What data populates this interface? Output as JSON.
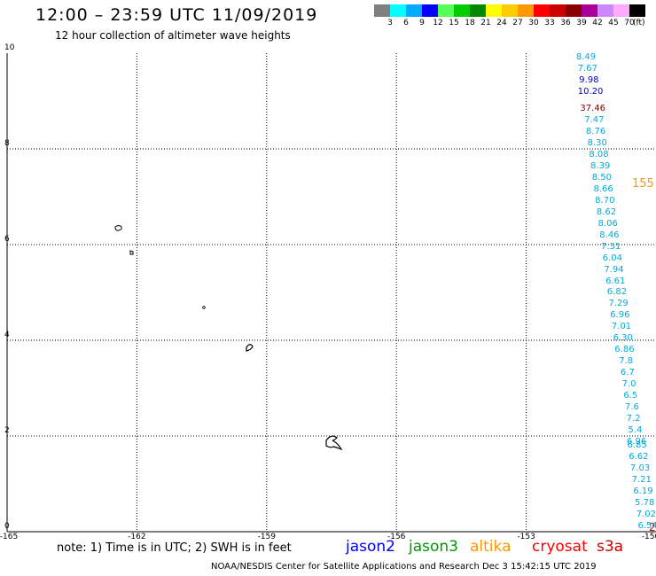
{
  "header": {
    "title": "12:00 – 23:59 UTC 11/09/2019",
    "subtitle": "12 hour collection of altimeter wave heights"
  },
  "scale": {
    "colors": [
      "#808080",
      "#00ffff",
      "#00aaff",
      "#0000ff",
      "#55ff55",
      "#00cc00",
      "#008800",
      "#ffff00",
      "#ffcc00",
      "#ff9900",
      "#ff0000",
      "#cc0000",
      "#880000",
      "#aa0099",
      "#cc88ff",
      "#ffaaff",
      "#000000"
    ],
    "labels": [
      "3",
      "6",
      "9",
      "12",
      "15",
      "18",
      "21",
      "24",
      "27",
      "30",
      "33",
      "36",
      "39",
      "42",
      "45",
      "70"
    ],
    "unit": "(ft)"
  },
  "map": {
    "lon_min": -165,
    "lon_max": -150,
    "lat_min": 0,
    "lat_max": 10,
    "x_labels": [
      "-165",
      "-162",
      "-159",
      "-156",
      "-153",
      "-150"
    ],
    "y_labels": [
      "0",
      "2",
      "4",
      "6",
      "8",
      "10"
    ],
    "grid": "dotted"
  },
  "observations": [
    {
      "v": "8.49",
      "color": "#00aadd",
      "lat": 9.8
    },
    {
      "v": "7.67",
      "color": "#00aadd",
      "lat": 9.56
    },
    {
      "v": "9.98",
      "color": "#0000cc",
      "lat": 9.32
    },
    {
      "v": "10.20",
      "color": "#0000cc",
      "lat": 9.08
    },
    {
      "v": "37.46",
      "color": "#880000",
      "lat": 8.72
    },
    {
      "v": "7.47",
      "color": "#00aadd",
      "lat": 8.48
    },
    {
      "v": "8.76",
      "color": "#00aadd",
      "lat": 8.24
    },
    {
      "v": "8.30",
      "color": "#00aadd",
      "lat": 8.0
    },
    {
      "v": "8.08",
      "color": "#00aadd",
      "lat": 7.76
    },
    {
      "v": "8.39",
      "color": "#00aadd",
      "lat": 7.52
    },
    {
      "v": "8.50",
      "color": "#00aadd",
      "lat": 7.28
    },
    {
      "v": "8.66",
      "color": "#00aadd",
      "lat": 7.04
    },
    {
      "v": "8.70",
      "color": "#00aadd",
      "lat": 6.8
    },
    {
      "v": "8.62",
      "color": "#00aadd",
      "lat": 6.56
    },
    {
      "v": "8.06",
      "color": "#00aadd",
      "lat": 6.32
    },
    {
      "v": "8.46",
      "color": "#00aadd",
      "lat": 6.08
    },
    {
      "v": "7.31",
      "color": "#00aadd",
      "lat": 5.84
    },
    {
      "v": "6.04",
      "color": "#00aadd",
      "lat": 5.6
    },
    {
      "v": "7.94",
      "color": "#00aadd",
      "lat": 5.36
    },
    {
      "v": "6.61",
      "color": "#00aadd",
      "lat": 5.12
    },
    {
      "v": "6.82",
      "color": "#00aadd",
      "lat": 4.88
    },
    {
      "v": "7.29",
      "color": "#00aadd",
      "lat": 4.64
    },
    {
      "v": "6.96",
      "color": "#00aadd",
      "lat": 4.4
    },
    {
      "v": "7.01",
      "color": "#00aadd",
      "lat": 4.16
    },
    {
      "v": "6.30",
      "color": "#00aadd",
      "lat": 3.92
    },
    {
      "v": "6.86",
      "color": "#00aadd",
      "lat": 3.68
    },
    {
      "v": "7.8",
      "color": "#00aadd",
      "lat": 3.44
    },
    {
      "v": "6.7",
      "color": "#00aadd",
      "lat": 3.2
    },
    {
      "v": "7.0",
      "color": "#00aadd",
      "lat": 2.96
    },
    {
      "v": "6.5",
      "color": "#00aadd",
      "lat": 2.72
    },
    {
      "v": "7.6",
      "color": "#00aadd",
      "lat": 2.48
    },
    {
      "v": "7.2",
      "color": "#00aadd",
      "lat": 2.24
    },
    {
      "v": "5.4",
      "color": "#00aadd",
      "lat": 2.0
    },
    {
      "v": "6.96",
      "color": "#00aadd",
      "lat": 1.76
    },
    {
      "v": "6.85",
      "color": "#00aadd",
      "lat": 1.68
    },
    {
      "v": "6.62",
      "color": "#00aadd",
      "lat": 1.44
    },
    {
      "v": "7.03",
      "color": "#00aadd",
      "lat": 1.2
    },
    {
      "v": "7.21",
      "color": "#00aadd",
      "lat": 0.96
    },
    {
      "v": "6.19",
      "color": "#00aadd",
      "lat": 0.72
    },
    {
      "v": "5.78",
      "color": "#00aadd",
      "lat": 0.48
    },
    {
      "v": "7.02",
      "color": "#00aadd",
      "lat": 0.24
    },
    {
      "v": "6.54",
      "color": "#00aadd",
      "lat": 0.0
    }
  ],
  "edge_labels": [
    {
      "v": "155",
      "color": "#ff9900",
      "lat": 7.28
    },
    {
      "v": "2",
      "color": "#cc0000",
      "lat": 0.0
    }
  ],
  "note": "note: 1) Time is in UTC; 2) SWH is in feet",
  "missions": [
    {
      "name": "jason2",
      "color": "#0000ff"
    },
    {
      "name": "jason3",
      "color": "#009900"
    },
    {
      "name": "altika",
      "color": "#ff9900"
    },
    {
      "name": "cryosat",
      "color": "#ff0000"
    },
    {
      "name": "s3a",
      "color": "#cc0000"
    }
  ],
  "footer": "NOAA/NESDIS Center for Satellite Applications and Research    Dec  3 15:42:15 UTC 2019"
}
